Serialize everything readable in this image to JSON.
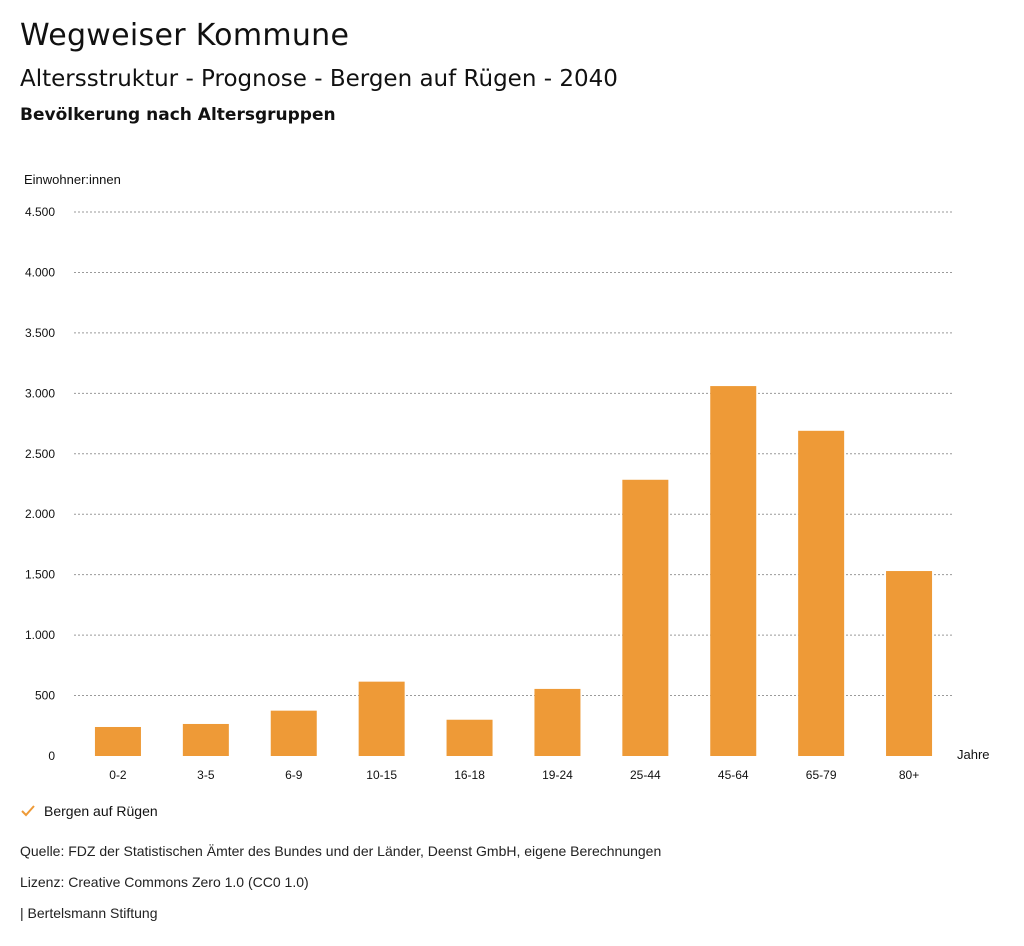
{
  "header": {
    "title": "Wegweiser Kommune",
    "subtitle": "Altersstruktur - Prognose - Bergen auf Rügen - 2040",
    "section_title": "Bevölkerung nach Altersgruppen"
  },
  "colors": {
    "bar": "#ee9a37",
    "grid": "#9a9a9a",
    "text": "#111111"
  },
  "chart_data": {
    "type": "bar",
    "title": "",
    "ylabel": "Einwohner:innen",
    "xlabel": "Jahre",
    "categories": [
      "0-2",
      "3-5",
      "6-9",
      "10-15",
      "16-18",
      "19-24",
      "25-44",
      "45-64",
      "65-79",
      "80+"
    ],
    "series": [
      {
        "name": "Bergen auf Rügen",
        "values": [
          240,
          265,
          375,
          615,
          300,
          555,
          2285,
          3060,
          2690,
          1530
        ]
      }
    ],
    "ylim": [
      0,
      4500
    ],
    "yticks": [
      0,
      500,
      1000,
      1500,
      2000,
      2500,
      3000,
      3500,
      4000,
      4500
    ],
    "ytick_labels": [
      "0",
      "500",
      "1.000",
      "1.500",
      "2.000",
      "2.500",
      "3.000",
      "3.500",
      "4.000",
      "4.500"
    ],
    "grid": true,
    "legend_position": "bottom-left"
  },
  "legend": {
    "label": "Bergen auf Rügen",
    "icon": "check-icon"
  },
  "footer": {
    "source": "Quelle: FDZ der Statistischen Ämter des Bundes und der Länder, Deenst GmbH, eigene Berechnungen",
    "license": "Lizenz: Creative Commons Zero 1.0 (CC0 1.0)",
    "credit": "| Bertelsmann Stiftung"
  }
}
